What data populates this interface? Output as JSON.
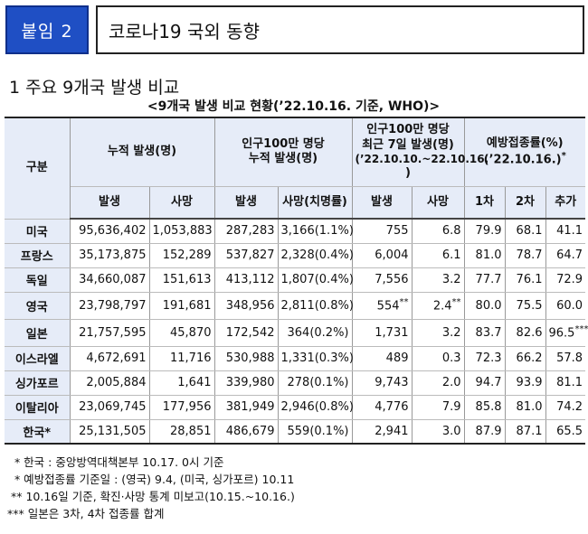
{
  "header": {
    "badge": "붙임 2",
    "title": "코로나19 국외 동향"
  },
  "section_title": "1  주요 9개국 발생 비교",
  "table_caption": "<9개국 발생 비교 현황(’22.10.16. 기준, WHO)>",
  "table": {
    "col_category": "구분",
    "group_cumulative": "누적 발생(명)",
    "group_per_million_cum": "인구100만 명당\n누적 발생(명)",
    "group_per_million_7d_line1": "인구100만 명당",
    "group_per_million_7d_line2": "최근 7일 발생(명)",
    "group_per_million_7d_line3": "(’22.10.10.~22.10.16.",
    "group_per_million_7d_line4": ")",
    "group_vaccination": "예방접종률(%)",
    "group_vaccination_date": "(’22.10.16.)",
    "group_vaccination_mark": "*",
    "sub_cases": "발생",
    "sub_deaths": "사망",
    "sub_pm_cases": "발생",
    "sub_pm_deaths": "사망(치명률)",
    "sub_7d_cases": "발생",
    "sub_7d_deaths": "사망",
    "sub_dose1": "1차",
    "sub_dose2": "2차",
    "sub_booster": "추가",
    "rows": [
      {
        "country": "미국",
        "cases": "95,636,402",
        "deaths": "1,053,883",
        "pm_cases": "287,283",
        "pm_deaths": "3,166(1.1%)",
        "w_cases": "755",
        "w_deaths": "6.8",
        "d1": "79.9",
        "d2": "68.1",
        "d3": "41.1"
      },
      {
        "country": "프랑스",
        "cases": "35,173,875",
        "deaths": "152,289",
        "pm_cases": "537,827",
        "pm_deaths": "2,328(0.4%)",
        "w_cases": "6,004",
        "w_deaths": "6.1",
        "d1": "81.0",
        "d2": "78.7",
        "d3": "64.7"
      },
      {
        "country": "독일",
        "cases": "34,660,087",
        "deaths": "151,613",
        "pm_cases": "413,112",
        "pm_deaths": "1,807(0.4%)",
        "w_cases": "7,556",
        "w_deaths": "3.2",
        "d1": "77.7",
        "d2": "76.1",
        "d3": "72.9"
      },
      {
        "country": "영국",
        "cases": "23,798,797",
        "deaths": "191,681",
        "pm_cases": "348,956",
        "pm_deaths": "2,811(0.8%)",
        "w_cases": "554",
        "w_cases_mark": "**",
        "w_deaths": "2.4",
        "w_deaths_mark": "**",
        "d1": "80.0",
        "d2": "75.5",
        "d3": "60.0"
      },
      {
        "country": "일본",
        "cases": "21,757,595",
        "deaths": "45,870",
        "pm_cases": "172,542",
        "pm_deaths": "364(0.2%)",
        "w_cases": "1,731",
        "w_deaths": "3.2",
        "d1": "83.7",
        "d2": "82.6",
        "d3": "96.5",
        "d3_mark": "***"
      },
      {
        "country": "이스라엘",
        "cases": "4,672,691",
        "deaths": "11,716",
        "pm_cases": "530,988",
        "pm_deaths": "1,331(0.3%)",
        "w_cases": "489",
        "w_deaths": "0.3",
        "d1": "72.3",
        "d2": "66.2",
        "d3": "57.8"
      },
      {
        "country": "싱가포르",
        "cases": "2,005,884",
        "deaths": "1,641",
        "pm_cases": "339,980",
        "pm_deaths": "278(0.1%)",
        "w_cases": "9,743",
        "w_deaths": "2.0",
        "d1": "94.7",
        "d2": "93.9",
        "d3": "81.1"
      },
      {
        "country": "이탈리아",
        "cases": "23,069,745",
        "deaths": "177,956",
        "pm_cases": "381,949",
        "pm_deaths": "2,946(0.8%)",
        "w_cases": "4,776",
        "w_deaths": "7.9",
        "d1": "85.8",
        "d2": "81.0",
        "d3": "74.2"
      },
      {
        "country": "한국*",
        "cases": "25,131,505",
        "deaths": "28,851",
        "pm_cases": "486,679",
        "pm_deaths": "559(0.1%)",
        "w_cases": "2,941",
        "w_deaths": "3.0",
        "d1": "87.9",
        "d2": "87.1",
        "d3": "65.5"
      }
    ]
  },
  "notes": [
    "  * 한국 : 중앙방역대책본부 10.17. 0시 기준",
    "  * 예방접종률 기준일 : (영국) 9.4, (미국, 싱가포르) 10.11",
    " ** 10.16일 기준, 확진·사망 통계 미보고(10.15.~10.16.)",
    "*** 일본은 3차, 4차 접종률 합계"
  ]
}
